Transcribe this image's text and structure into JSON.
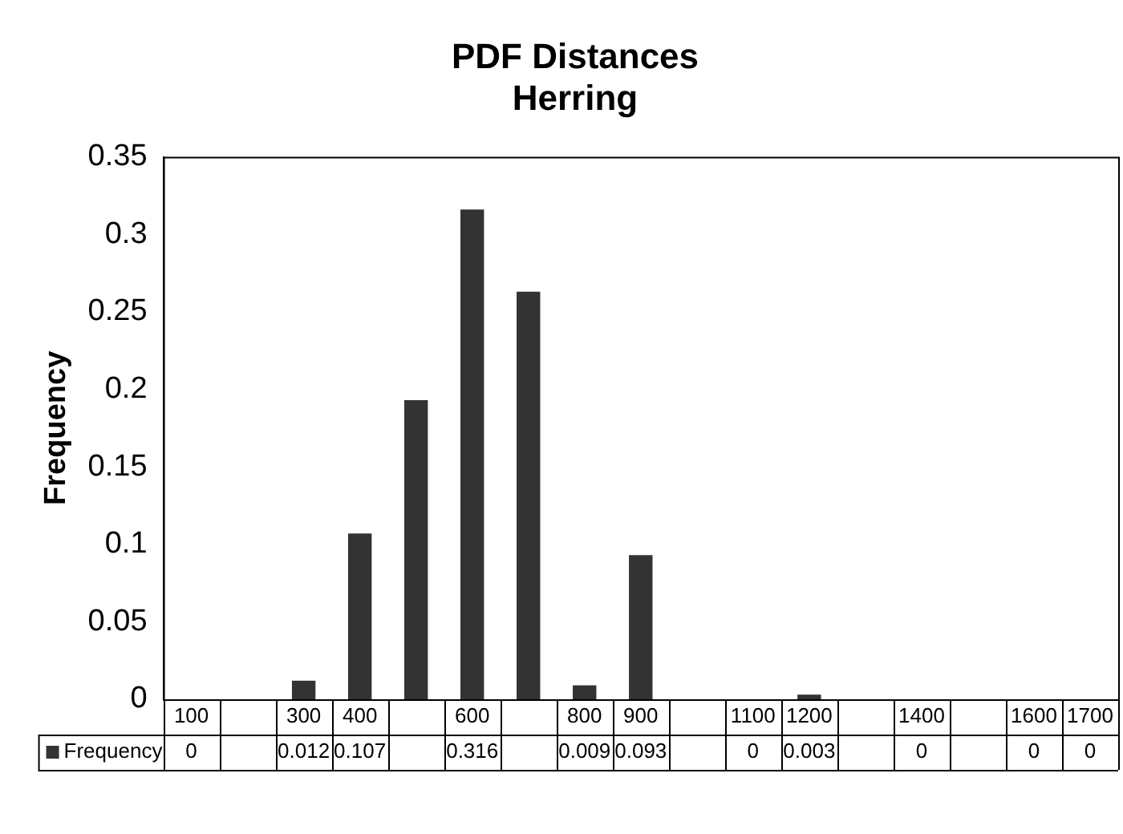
{
  "chart_data": {
    "type": "bar",
    "title": "PDF Distances\nHerring",
    "ylabel": "Frequency",
    "categories": [
      "100",
      null,
      "300",
      "400",
      null,
      "600",
      null,
      "800",
      "900",
      null,
      "1100",
      "1200",
      null,
      "1400",
      null,
      "1600",
      "1700"
    ],
    "series": [
      {
        "name": "Frequency",
        "color": "#333333",
        "values": [
          0,
          0,
          0.012,
          0.107,
          0.193,
          0.316,
          0.263,
          0.009,
          0.093,
          0,
          0,
          0.003,
          0,
          0,
          0,
          0,
          0
        ],
        "value_labels": [
          "0",
          null,
          "0.012",
          "0.107",
          null,
          "0.316",
          null,
          "0.009",
          "0.093",
          null,
          "0",
          "0.003",
          null,
          "0",
          null,
          "0",
          "0"
        ]
      }
    ],
    "ylim": [
      0,
      0.35
    ],
    "yticks": [
      0,
      0.05,
      0.1,
      0.15,
      0.2,
      0.25,
      0.3,
      0.35
    ],
    "grid": false,
    "legend": "bottom left"
  }
}
